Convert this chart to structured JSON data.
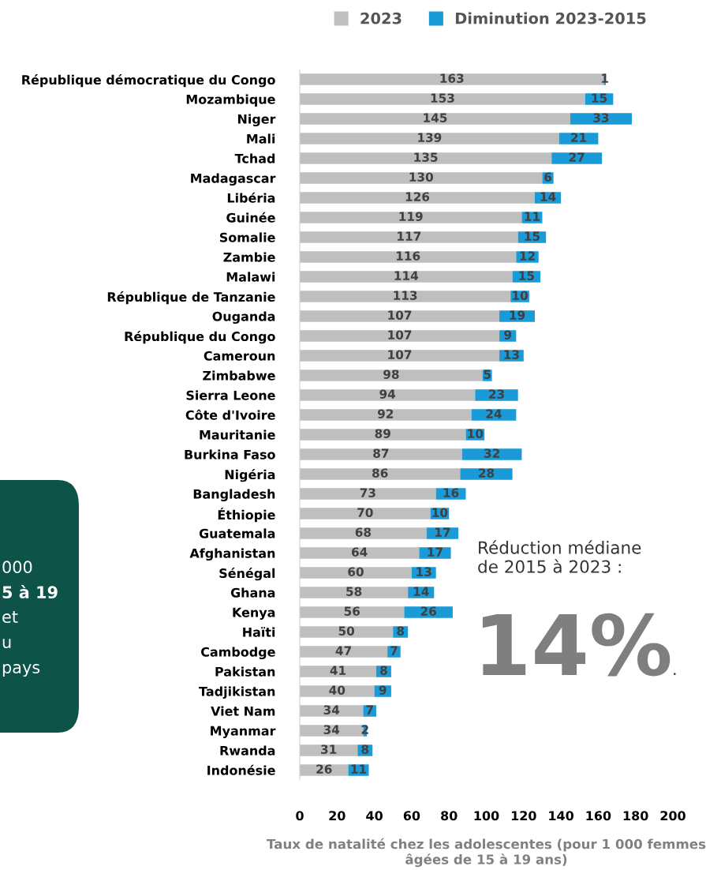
{
  "chart_data": {
    "type": "bar",
    "orientation": "horizontal",
    "stacked": true,
    "categories": [
      "République démocratique du Congo",
      "Mozambique",
      "Niger",
      "Mali",
      "Tchad",
      "Madagascar",
      "Libéria",
      "Guinée",
      "Somalie",
      "Zambie",
      "Malawi",
      "République de Tanzanie",
      "Ouganda",
      "République du Congo",
      "Cameroun",
      "Zimbabwe",
      "Sierra Leone",
      "Côte d'Ivoire",
      "Mauritanie",
      "Burkina Faso",
      "Nigéria",
      "Bangladesh",
      "Éthiopie",
      "Guatemala",
      "Afghanistan",
      "Sénégal",
      "Ghana",
      "Kenya",
      "Haïti",
      "Cambodge",
      "Pakistan",
      "Tadjikistan",
      "Viet Nam",
      "Myanmar",
      "Rwanda",
      "Indonésie"
    ],
    "series": [
      {
        "name": "2023",
        "color": "#bfbfbf",
        "values": [
          163,
          153,
          145,
          139,
          135,
          130,
          126,
          119,
          117,
          116,
          114,
          113,
          107,
          107,
          107,
          98,
          94,
          92,
          89,
          87,
          86,
          73,
          70,
          68,
          64,
          60,
          58,
          56,
          50,
          47,
          41,
          40,
          34,
          34,
          31,
          26
        ]
      },
      {
        "name": "Diminution 2023-2015",
        "color": "#1a9ad6",
        "values": [
          1,
          15,
          33,
          21,
          27,
          6,
          14,
          11,
          15,
          12,
          15,
          10,
          19,
          9,
          13,
          5,
          23,
          24,
          10,
          32,
          28,
          16,
          10,
          17,
          17,
          13,
          14,
          26,
          8,
          7,
          8,
          9,
          7,
          2,
          8,
          11
        ]
      }
    ],
    "xlim": [
      0,
      200
    ],
    "xticks": [
      0,
      20,
      40,
      60,
      80,
      100,
      120,
      140,
      160,
      180,
      200
    ],
    "xlabel": "Taux de natalité chez les adolescentes (pour 1 000 femmes\nâgées de 15 à 19 ans)",
    "data_labels": true,
    "legend": "top",
    "grid": false,
    "annotations": [
      "Réduction médiane\nde 2015 à 2023 :",
      "14%",
      ".",
      "000",
      "5 à 19",
      "et",
      "u",
      "pays"
    ]
  }
}
